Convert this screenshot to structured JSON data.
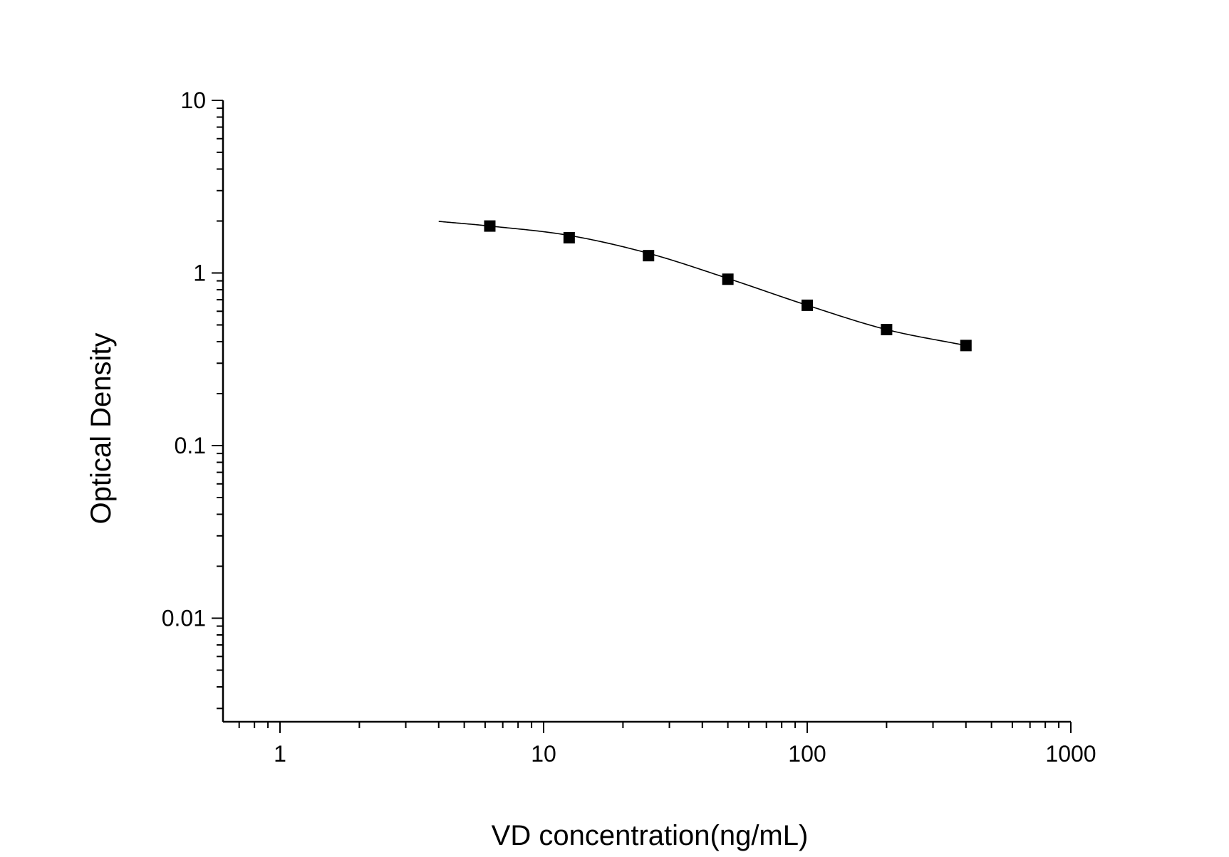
{
  "chart_data": {
    "type": "scatter",
    "xlabel": "VD concentration(ng/mL)",
    "ylabel": "Optical Density",
    "x_scale": "log",
    "y_scale": "log",
    "xlim": [
      0.63,
      1000
    ],
    "ylim": [
      0.0025,
      10
    ],
    "x_ticks": [
      {
        "value": 1,
        "label": "1"
      },
      {
        "value": 10,
        "label": "10"
      },
      {
        "value": 100,
        "label": "100"
      },
      {
        "value": 1000,
        "label": "1000"
      }
    ],
    "y_ticks": [
      {
        "value": 0.01,
        "label": "0.01"
      },
      {
        "value": 0.1,
        "label": "0.1"
      },
      {
        "value": 1,
        "label": "1"
      },
      {
        "value": 10,
        "label": "10"
      }
    ],
    "grid": false,
    "series": [
      {
        "x": [
          6.25,
          12.5,
          25,
          50,
          100,
          200,
          400
        ],
        "y": [
          1.87,
          1.6,
          1.26,
          0.92,
          0.65,
          0.47,
          0.38
        ],
        "marker": "square",
        "color": "#000000"
      }
    ],
    "fit_curve": {
      "x": [
        4,
        6.25,
        12.5,
        25,
        50,
        100,
        200,
        400
      ],
      "y": [
        1.99,
        1.87,
        1.65,
        1.3,
        0.93,
        0.65,
        0.47,
        0.38
      ],
      "color": "#000000"
    }
  }
}
